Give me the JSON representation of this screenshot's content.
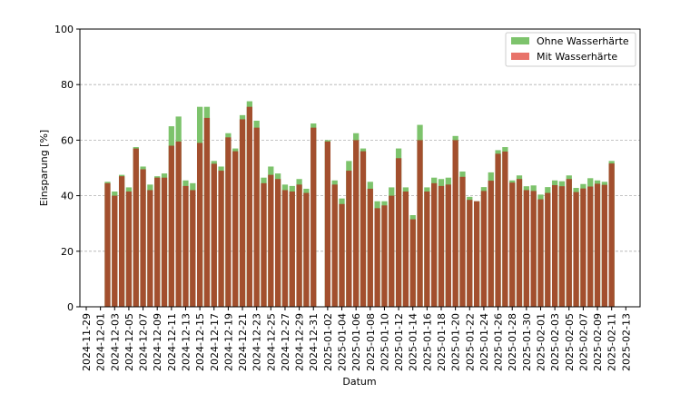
{
  "chart_data": {
    "type": "bar",
    "title": "",
    "xlabel": "Datum",
    "ylabel": "Einsparung [%]",
    "ylim": [
      0,
      100
    ],
    "y_ticks": [
      "0",
      "20",
      "40",
      "60",
      "80",
      "100"
    ],
    "grid": "horizontal dashed",
    "legend_placement": "top-right",
    "x_ticks": [
      "2024-11-29",
      "2024-12-01",
      "2024-12-03",
      "2024-12-05",
      "2024-12-07",
      "2024-12-09",
      "2024-12-11",
      "2024-12-13",
      "2024-12-15",
      "2024-12-17",
      "2024-12-19",
      "2024-12-21",
      "2024-12-23",
      "2024-12-25",
      "2024-12-27",
      "2024-12-29",
      "2024-12-31",
      "2025-01-02",
      "2025-01-04",
      "2025-01-06",
      "2025-01-08",
      "2025-01-10",
      "2025-01-12",
      "2025-01-14",
      "2025-01-16",
      "2025-01-18",
      "2025-01-20",
      "2025-01-22",
      "2025-01-24",
      "2025-01-26",
      "2025-01-28",
      "2025-01-30",
      "2025-02-01",
      "2025-02-03",
      "2025-02-05",
      "2025-02-07",
      "2025-02-09",
      "2025-02-11",
      "2025-02-13"
    ],
    "x": [
      "2024-12-02",
      "2024-12-03",
      "2024-12-04",
      "2024-12-05",
      "2024-12-06",
      "2024-12-07",
      "2024-12-08",
      "2024-12-09",
      "2024-12-10",
      "2024-12-11",
      "2024-12-12",
      "2024-12-13",
      "2024-12-14",
      "2024-12-15",
      "2024-12-16",
      "2024-12-17",
      "2024-12-18",
      "2024-12-19",
      "2024-12-20",
      "2024-12-21",
      "2024-12-22",
      "2024-12-23",
      "2024-12-24",
      "2024-12-25",
      "2024-12-26",
      "2024-12-27",
      "2024-12-28",
      "2024-12-29",
      "2024-12-30",
      "2024-12-31",
      "2025-01-02",
      "2025-01-03",
      "2025-01-04",
      "2025-01-05",
      "2025-01-06",
      "2025-01-07",
      "2025-01-08",
      "2025-01-09",
      "2025-01-10",
      "2025-01-11",
      "2025-01-12",
      "2025-01-13",
      "2025-01-14",
      "2025-01-15",
      "2025-01-16",
      "2025-01-17",
      "2025-01-18",
      "2025-01-19",
      "2025-01-20",
      "2025-01-21",
      "2025-01-22",
      "2025-01-23",
      "2025-01-24",
      "2025-01-25",
      "2025-01-26",
      "2025-01-27",
      "2025-01-28",
      "2025-01-29",
      "2025-01-30",
      "2025-01-31",
      "2025-02-01",
      "2025-02-02",
      "2025-02-03",
      "2025-02-04",
      "2025-02-05",
      "2025-02-06",
      "2025-02-07",
      "2025-02-08",
      "2025-02-09",
      "2025-02-10",
      "2025-02-11"
    ],
    "series": [
      {
        "name": "Ohne Wasserhärte",
        "color": "#7dc36c",
        "values": [
          45,
          41.5,
          47.5,
          43,
          57.5,
          50.5,
          44,
          47,
          48,
          65,
          68.5,
          45.5,
          44.5,
          72,
          72,
          52.5,
          50.5,
          62.5,
          57,
          69,
          74,
          67,
          46.5,
          50.5,
          48,
          44,
          43.5,
          46,
          42.5,
          66,
          60,
          45.5,
          39,
          52.5,
          62.5,
          57,
          45,
          38,
          38,
          43,
          57,
          43,
          33,
          65.5,
          43,
          46.5,
          46,
          46.5,
          61.5,
          48.7,
          39.6,
          38,
          43.1,
          48.4,
          56.4,
          57.5,
          45.5,
          47.3,
          43.4,
          43.7,
          40.4,
          43.1,
          45.5,
          45.2,
          47.3,
          42.8,
          44.2,
          46.3,
          45.5,
          45,
          52.5
        ]
      },
      {
        "name": "Mit Wasserhärte",
        "color": "#e8736a",
        "values": [
          44.5,
          40,
          47,
          41.5,
          57,
          49.5,
          42,
          46.5,
          46.5,
          58,
          59.5,
          43.5,
          42,
          59,
          68,
          51.5,
          49,
          61,
          56,
          67.5,
          72,
          64.5,
          44.5,
          47.5,
          46,
          42,
          41.5,
          44,
          41,
          64.5,
          59.5,
          44,
          37,
          49,
          60,
          56,
          42.5,
          35.5,
          36.5,
          40,
          53.5,
          41.5,
          31.5,
          60,
          41.5,
          44.5,
          43.5,
          44,
          60,
          46.8,
          38.5,
          38,
          41.7,
          45.4,
          55.1,
          55.9,
          44.7,
          46,
          42,
          41.7,
          38.7,
          41,
          43.8,
          43.4,
          46,
          41.3,
          42.6,
          43.3,
          44.3,
          43.9,
          51.6
        ]
      }
    ],
    "overlap_color": "#a34f2e"
  }
}
